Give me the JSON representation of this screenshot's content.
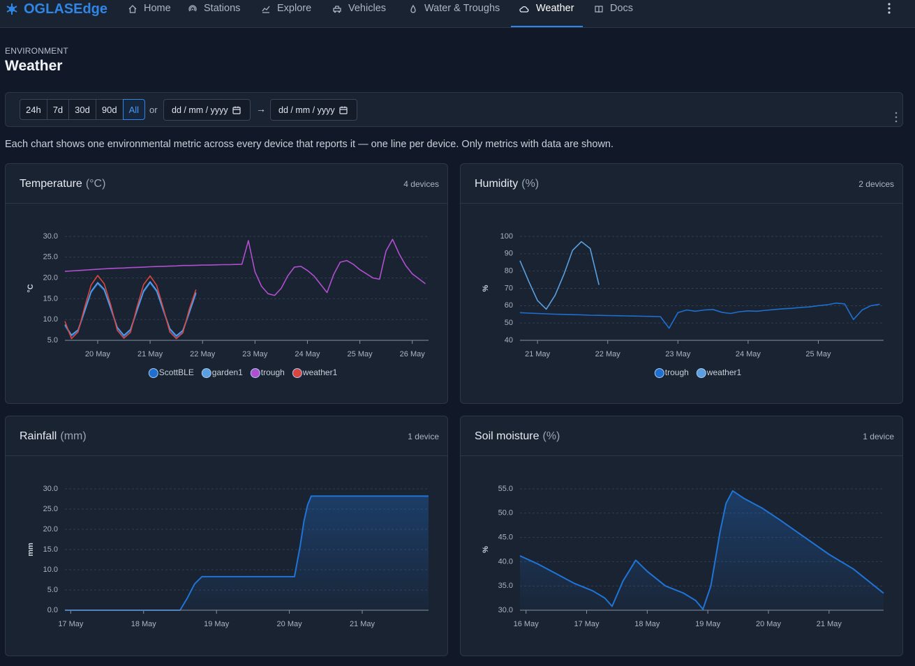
{
  "nav": {
    "brand": "OGLASEdge",
    "items": [
      "Home",
      "Stations",
      "Explore",
      "Vehicles",
      "Water & Troughs",
      "Weather",
      "Docs"
    ],
    "active": 5
  },
  "header": {
    "eyebrow": "ENVIRONMENT",
    "title": "Weather"
  },
  "filters": {
    "ranges": [
      "24h",
      "7d",
      "30d",
      "90d",
      "All"
    ],
    "active": 4,
    "or": "or",
    "date_from": "dd / mm / yyyy",
    "arrow": "→",
    "date_to": "dd / mm / yyyy"
  },
  "description": "Each chart shows one environmental metric across every device that reports it — one line per device. Only metrics with data are shown.",
  "chart_data": [
    {
      "type": "line",
      "title": "Temperature",
      "unit": "(°C)",
      "device_count": "4 devices",
      "y_label": "°C",
      "grid": true,
      "x": [
        19.375,
        19.5,
        19.625,
        19.75,
        19.875,
        20,
        20.125,
        20.25,
        20.375,
        20.5,
        20.625,
        20.75,
        20.875,
        21,
        21.125,
        21.25,
        21.375,
        21.5,
        21.625,
        21.75,
        21.875,
        22,
        22.125,
        22.25,
        22.375,
        22.5,
        22.625,
        22.75,
        22.875,
        23,
        23.125,
        23.25,
        23.375,
        23.5,
        23.625,
        23.75,
        23.875,
        24,
        24.125,
        24.25,
        24.375,
        24.5,
        24.625,
        24.75,
        24.875,
        25,
        25.125,
        25.25,
        25.375,
        25.5,
        25.625,
        25.75,
        25.875,
        26,
        26.125,
        26.25
      ],
      "xlim": [
        19.375,
        26.31
      ],
      "xticks": [
        {
          "value": 20,
          "label": "20 May"
        },
        {
          "value": 21,
          "label": "21 May"
        },
        {
          "value": 22,
          "label": "22 May"
        },
        {
          "value": 23,
          "label": "23 May"
        },
        {
          "value": 24,
          "label": "24 May"
        },
        {
          "value": 25,
          "label": "25 May"
        },
        {
          "value": 26,
          "label": "26 May"
        }
      ],
      "ylim": [
        5,
        30
      ],
      "yticks": [
        {
          "value": 5,
          "label": "5.0"
        },
        {
          "value": 10,
          "label": "10.0"
        },
        {
          "value": 15,
          "label": "15.0"
        },
        {
          "value": 20,
          "label": "20.0"
        },
        {
          "value": 25,
          "label": "25.0"
        },
        {
          "value": 30,
          "label": "30.0"
        }
      ],
      "series": [
        {
          "name": "ScottBLE",
          "color": "#1f6fd0",
          "values": [
            8.5,
            6.0,
            7.2,
            11.8,
            16.5,
            18.6,
            17.0,
            12.5,
            7.9,
            5.9,
            7.3,
            12.0,
            16.6,
            18.8,
            16.7,
            12.1,
            7.5,
            5.8,
            7.1,
            11.6,
            16.2,
            null,
            null,
            null,
            null,
            null,
            null,
            null,
            null,
            null,
            null,
            null,
            null,
            null,
            null,
            null,
            null,
            null,
            null,
            null,
            null,
            null,
            null,
            null,
            null,
            null,
            null,
            null,
            null,
            null,
            null,
            null,
            null,
            null,
            null,
            null
          ]
        },
        {
          "name": "garden1",
          "color": "#5aa0e0",
          "values": [
            8.8,
            6.3,
            7.5,
            12.1,
            16.8,
            18.9,
            17.3,
            12.8,
            8.1,
            6.2,
            7.6,
            12.3,
            16.9,
            19.1,
            17.0,
            12.4,
            7.8,
            6.1,
            7.4,
            11.9,
            16.5,
            null,
            null,
            null,
            null,
            null,
            null,
            null,
            null,
            null,
            null,
            null,
            null,
            null,
            null,
            null,
            null,
            null,
            null,
            null,
            null,
            null,
            null,
            null,
            null,
            null,
            null,
            null,
            null,
            null,
            null,
            null,
            null,
            null,
            null,
            null
          ]
        },
        {
          "name": "trough",
          "color": "#b04fd0",
          "values": [
            21.6,
            21.7,
            21.8,
            21.9,
            22.0,
            22.1,
            22.2,
            22.3,
            22.35,
            22.4,
            22.5,
            22.55,
            22.6,
            22.7,
            22.75,
            22.8,
            22.85,
            22.9,
            23.0,
            23.0,
            23.05,
            23.1,
            23.1,
            23.15,
            23.2,
            23.2,
            23.25,
            23.3,
            29.0,
            21.5,
            18.0,
            16.2,
            15.8,
            17.5,
            20.5,
            22.6,
            22.8,
            21.8,
            20.5,
            18.5,
            16.5,
            20.8,
            23.8,
            24.2,
            23.3,
            22.0,
            21.0,
            20.0,
            19.7,
            26.5,
            29.3,
            25.8,
            23.0,
            21.0,
            19.8,
            18.6
          ]
        },
        {
          "name": "weather1",
          "color": "#d9463f",
          "values": [
            9.6,
            5.4,
            7.0,
            12.9,
            18.3,
            20.6,
            18.6,
            13.5,
            7.4,
            5.5,
            6.9,
            13.0,
            18.4,
            20.5,
            18.2,
            12.8,
            7.0,
            5.4,
            6.8,
            12.6,
            17.2,
            null,
            null,
            null,
            null,
            null,
            null,
            null,
            null,
            null,
            null,
            null,
            null,
            null,
            null,
            null,
            null,
            null,
            null,
            null,
            null,
            null,
            null,
            null,
            null,
            null,
            null,
            null,
            null,
            null,
            null,
            null,
            null,
            null,
            null,
            null
          ]
        }
      ]
    },
    {
      "type": "line",
      "title": "Humidity",
      "unit": "(%)",
      "device_count": "2 devices",
      "y_label": "%",
      "grid": true,
      "x": [
        20.75,
        20.875,
        21,
        21.125,
        21.25,
        21.375,
        21.5,
        21.625,
        21.75,
        21.875,
        22,
        22.125,
        22.25,
        22.375,
        22.5,
        22.625,
        22.75,
        22.875,
        23,
        23.125,
        23.25,
        23.375,
        23.5,
        23.625,
        23.75,
        23.875,
        24,
        24.125,
        24.25,
        24.375,
        24.5,
        24.625,
        24.75,
        24.875,
        25,
        25.125,
        25.25,
        25.375,
        25.5,
        25.625,
        25.75,
        25.875
      ],
      "xlim": [
        20.75,
        25.93
      ],
      "xticks": [
        {
          "value": 21,
          "label": "21 May"
        },
        {
          "value": 22,
          "label": "22 May"
        },
        {
          "value": 23,
          "label": "23 May"
        },
        {
          "value": 24,
          "label": "24 May"
        },
        {
          "value": 25,
          "label": "25 May"
        }
      ],
      "ylim": [
        40,
        100
      ],
      "yticks": [
        40,
        50,
        60,
        70,
        80,
        90,
        100
      ],
      "series": [
        {
          "name": "trough",
          "color": "#1f6fd0",
          "values": [
            56,
            55.7,
            55.5,
            55.3,
            55.1,
            55.0,
            54.8,
            54.7,
            54.5,
            54.4,
            54.3,
            54.2,
            54.1,
            54.0,
            53.9,
            53.8,
            53.7,
            47.0,
            56.0,
            57.5,
            56.8,
            57.5,
            57.8,
            56.2,
            55.5,
            56.5,
            57.0,
            56.8,
            57.3,
            57.8,
            58.2,
            58.5,
            59.0,
            59.3,
            60.0,
            60.5,
            61.5,
            61.0,
            52.0,
            57.5,
            60.0,
            60.8
          ]
        },
        {
          "name": "weather1",
          "color": "#5aa0e0",
          "values": [
            86,
            74,
            63,
            58,
            66,
            78,
            92,
            97,
            93,
            72,
            null,
            null,
            null,
            null,
            null,
            null,
            null,
            null,
            null,
            null,
            null,
            null,
            null,
            null,
            null,
            null,
            null,
            null,
            null,
            null,
            null,
            null,
            null,
            null,
            null,
            null,
            null,
            null,
            null,
            null,
            null,
            null
          ]
        }
      ]
    },
    {
      "type": "area",
      "title": "Rainfall",
      "unit": "(mm)",
      "device_count": "1 device",
      "y_label": "mm",
      "grid": true,
      "x": [
        16.92,
        17.5,
        18.0,
        18.5,
        18.6,
        18.7,
        18.8,
        19.0,
        19.5,
        20.0,
        20.07,
        20.15,
        20.2,
        20.25,
        20.3,
        20.5,
        21.0,
        21.5,
        21.91
      ],
      "xlim": [
        16.92,
        21.91
      ],
      "xticks": [
        {
          "value": 17,
          "label": "17 May"
        },
        {
          "value": 18,
          "label": "18 May"
        },
        {
          "value": 19,
          "label": "19 May"
        },
        {
          "value": 20,
          "label": "20 May"
        },
        {
          "value": 21,
          "label": "21 May"
        }
      ],
      "ylim": [
        0,
        30
      ],
      "yticks": [
        {
          "value": 0,
          "label": "0.0"
        },
        {
          "value": 5,
          "label": "5.0"
        },
        {
          "value": 10,
          "label": "10.0"
        },
        {
          "value": 15,
          "label": "15.0"
        },
        {
          "value": 20,
          "label": "20.0"
        },
        {
          "value": 25,
          "label": "25.0"
        },
        {
          "value": 30,
          "label": "30.0"
        }
      ],
      "series": [
        {
          "color": "#1f74d8",
          "values": [
            0,
            0,
            0,
            0,
            3,
            6.5,
            8.3,
            8.3,
            8.3,
            8.3,
            8.3,
            16,
            22,
            26,
            28.2,
            28.2,
            28.2,
            28.2,
            28.2
          ]
        }
      ]
    },
    {
      "type": "area",
      "title": "Soil moisture",
      "unit": "(%)",
      "device_count": "1 device",
      "y_label": "%",
      "grid": true,
      "x": [
        15.9,
        16.2,
        16.5,
        16.8,
        17.1,
        17.3,
        17.42,
        17.6,
        17.81,
        18.0,
        18.3,
        18.6,
        18.8,
        18.92,
        19.05,
        19.2,
        19.3,
        19.41,
        19.6,
        19.9,
        20.2,
        20.6,
        21.0,
        21.4,
        21.9
      ],
      "xlim": [
        15.9,
        21.9
      ],
      "xticks": [
        {
          "value": 16,
          "label": "16 May"
        },
        {
          "value": 17,
          "label": "17 May"
        },
        {
          "value": 18,
          "label": "18 May"
        },
        {
          "value": 19,
          "label": "19 May"
        },
        {
          "value": 20,
          "label": "20 May"
        },
        {
          "value": 21,
          "label": "21 May"
        }
      ],
      "ylim": [
        30,
        55
      ],
      "yticks": [
        {
          "value": 30,
          "label": "30.0"
        },
        {
          "value": 35,
          "label": "35.0"
        },
        {
          "value": 40,
          "label": "40.0"
        },
        {
          "value": 45,
          "label": "45.0"
        },
        {
          "value": 50,
          "label": "50.0"
        },
        {
          "value": 55,
          "label": "55.0"
        }
      ],
      "series": [
        {
          "color": "#1f74d8",
          "values": [
            41.2,
            39.5,
            37.5,
            35.5,
            34,
            32.5,
            30.8,
            36,
            40.3,
            38,
            35,
            33.5,
            32,
            30.2,
            35,
            46,
            52,
            54.6,
            53,
            51,
            48.5,
            45,
            41.5,
            38.5,
            33.5
          ]
        }
      ]
    }
  ]
}
